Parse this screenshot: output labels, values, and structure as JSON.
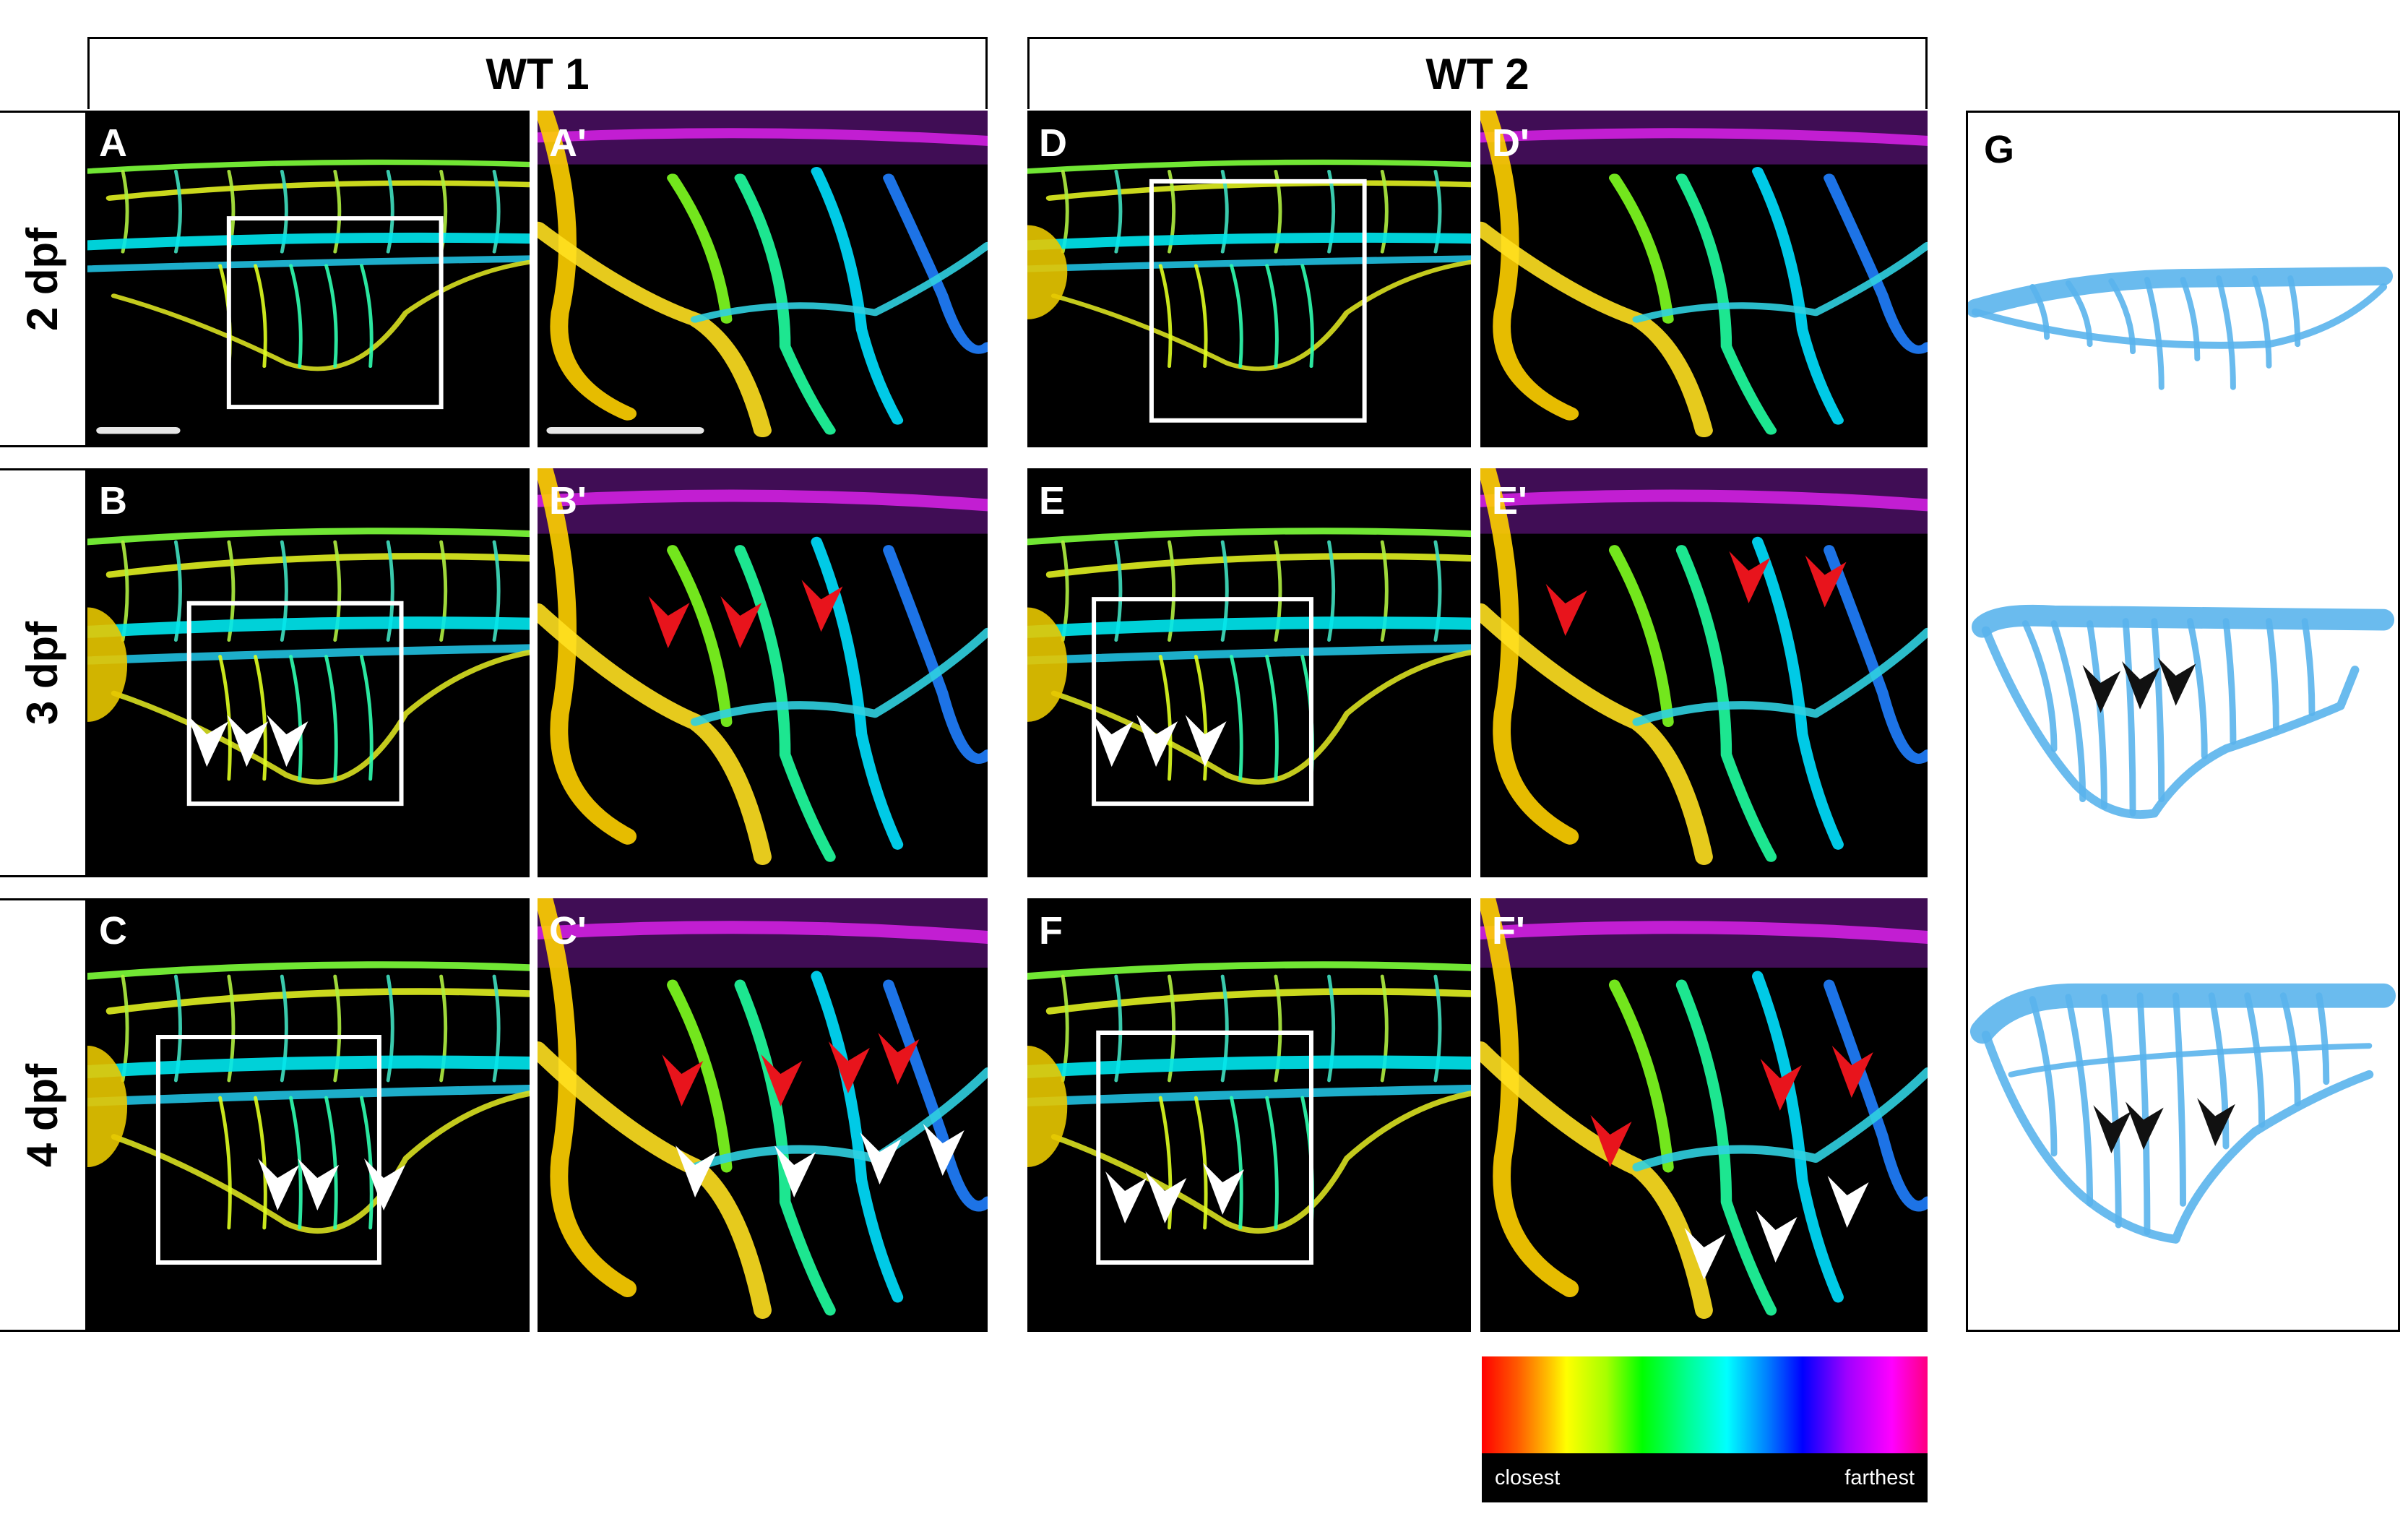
{
  "columns": [
    {
      "label": "WT 1"
    },
    {
      "label": "WT 2"
    }
  ],
  "rows": [
    {
      "label": "2 dpf"
    },
    {
      "label": "3 dpf"
    },
    {
      "label": "4 dpf"
    }
  ],
  "panels": {
    "A": {
      "label": "A"
    },
    "A_prime": {
      "label": "A'"
    },
    "B": {
      "label": "B"
    },
    "B_prime": {
      "label": "B'"
    },
    "C": {
      "label": "C"
    },
    "C_prime": {
      "label": "C'"
    },
    "D": {
      "label": "D"
    },
    "D_prime": {
      "label": "D'"
    },
    "E": {
      "label": "E"
    },
    "E_prime": {
      "label": "E'"
    },
    "F": {
      "label": "F"
    },
    "F_prime": {
      "label": "F'"
    },
    "G": {
      "label": "G"
    }
  },
  "colorbar": {
    "closest_label": "closest",
    "farthest_label": "farthest",
    "gradient": [
      "#ff0000",
      "#ffff00",
      "#00ff00",
      "#00ffff",
      "#0000ff",
      "#ff00ff"
    ]
  },
  "colors": {
    "schematic_vessel": "#5ab4ec",
    "red_arrow": "#e8141c",
    "white_arrow": "#ffffff",
    "black_arrow": "#111111"
  }
}
